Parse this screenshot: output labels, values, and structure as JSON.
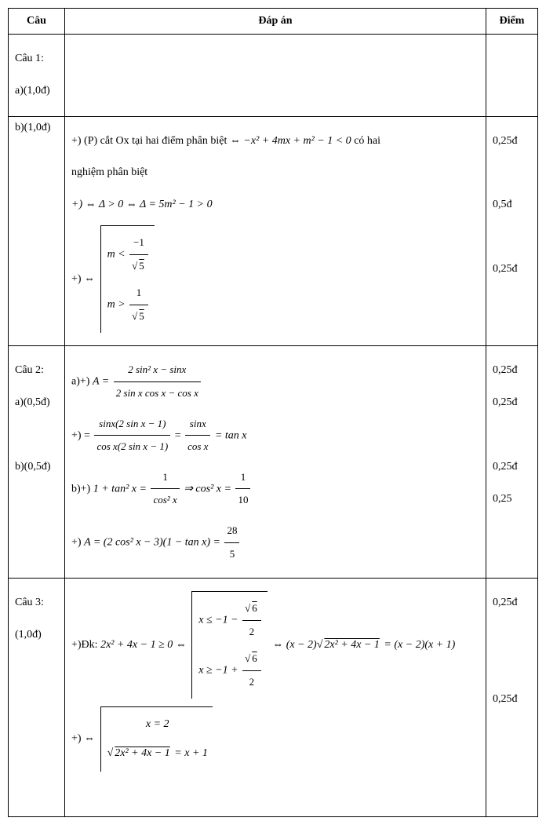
{
  "header": {
    "cau": "Câu",
    "dapan": "Đáp án",
    "diem": "Điểm"
  },
  "rows": [
    {
      "cau_lines": [
        "Câu 1:",
        "a)(1,0đ)"
      ],
      "content": {
        "type": "blank"
      },
      "diem_lines": []
    },
    {
      "cau_lines": [
        "b)(1,0đ)"
      ],
      "content": {
        "type": "r1b",
        "line1_prefix": "+) (P) cắt Ox tại hai điểm phân biệt ⇔ ",
        "line1_math": "−x² + 4mx + m² − 1 < 0",
        "line1_suffix": "  có hai",
        "line2": "nghiệm phân biệt",
        "line3": "+)  ⇔ Δ > 0 ⇔ Δ = 5m² − 1 > 0",
        "line4_prefix": "+) ⇔ ",
        "br_top_lhs": "m < ",
        "br_top_num": "−1",
        "br_top_den_root": "5",
        "br_bot_lhs": "m > ",
        "br_bot_num": "1",
        "br_bot_den_root": "5"
      },
      "diem_lines": [
        "0,25đ",
        "",
        "0,5đ",
        "",
        "0,25đ"
      ]
    },
    {
      "cau_lines": [
        "Câu 2:",
        "a)(0,5đ)",
        "",
        "b)(0,5đ)"
      ],
      "content": {
        "type": "r2",
        "a1_prefix": "a)+) ",
        "a1_lhs": "A = ",
        "a1_num": "2 sin² x − sinx",
        "a1_den": "2 sin x cos x − cos x",
        "a2_prefix": "+) = ",
        "a2_num1": "sinx(2 sin x − 1)",
        "a2_den1": "cos x(2 sin x − 1)",
        "a2_num2": "sinx",
        "a2_den2": "cos x",
        "a2_tail": " = tan x",
        "b1_prefix": "b)+) ",
        "b1_lhs": "1 + tan² x = ",
        "b1_num1": "1",
        "b1_den1": "cos² x",
        "b1_mid": " ⇒ cos² x = ",
        "b1_num2": "1",
        "b1_den2": "10",
        "b2_prefix": "+) ",
        "b2_lhs": "A = (2 cos² x − 3)(1 − tan x) = ",
        "b2_num": "28",
        "b2_den": "5"
      },
      "diem_lines": [
        "0,25đ",
        "0,25đ",
        "",
        "0,25đ",
        "0,25"
      ]
    },
    {
      "cau_lines": [
        "Câu 3:",
        "(1,0đ)"
      ],
      "content": {
        "type": "r3",
        "l1_prefix": "+)Đk:  ",
        "l1_lhs": "2x² + 4x − 1 ≥ 0 ⇔ ",
        "l1_br_top_lhs": "x ≤ −1 − ",
        "l1_br_bot_lhs": "x ≥ −1 + ",
        "l1_frac_num_root": "6",
        "l1_frac_den": "2",
        "l1_mid": " ⇔  ",
        "l1_rhs_a": "(x − 2)",
        "l1_rhs_root": "2x² + 4x − 1",
        "l1_rhs_b": " = (x − 2)(x + 1)",
        "l2_prefix": "+) ⇔ ",
        "l2_top": "x = 2",
        "l2_bot_root": "2x² + 4x − 1",
        "l2_bot_tail": " = x + 1"
      },
      "diem_lines": [
        "0,25đ",
        "",
        "",
        "0,25đ"
      ]
    }
  ]
}
